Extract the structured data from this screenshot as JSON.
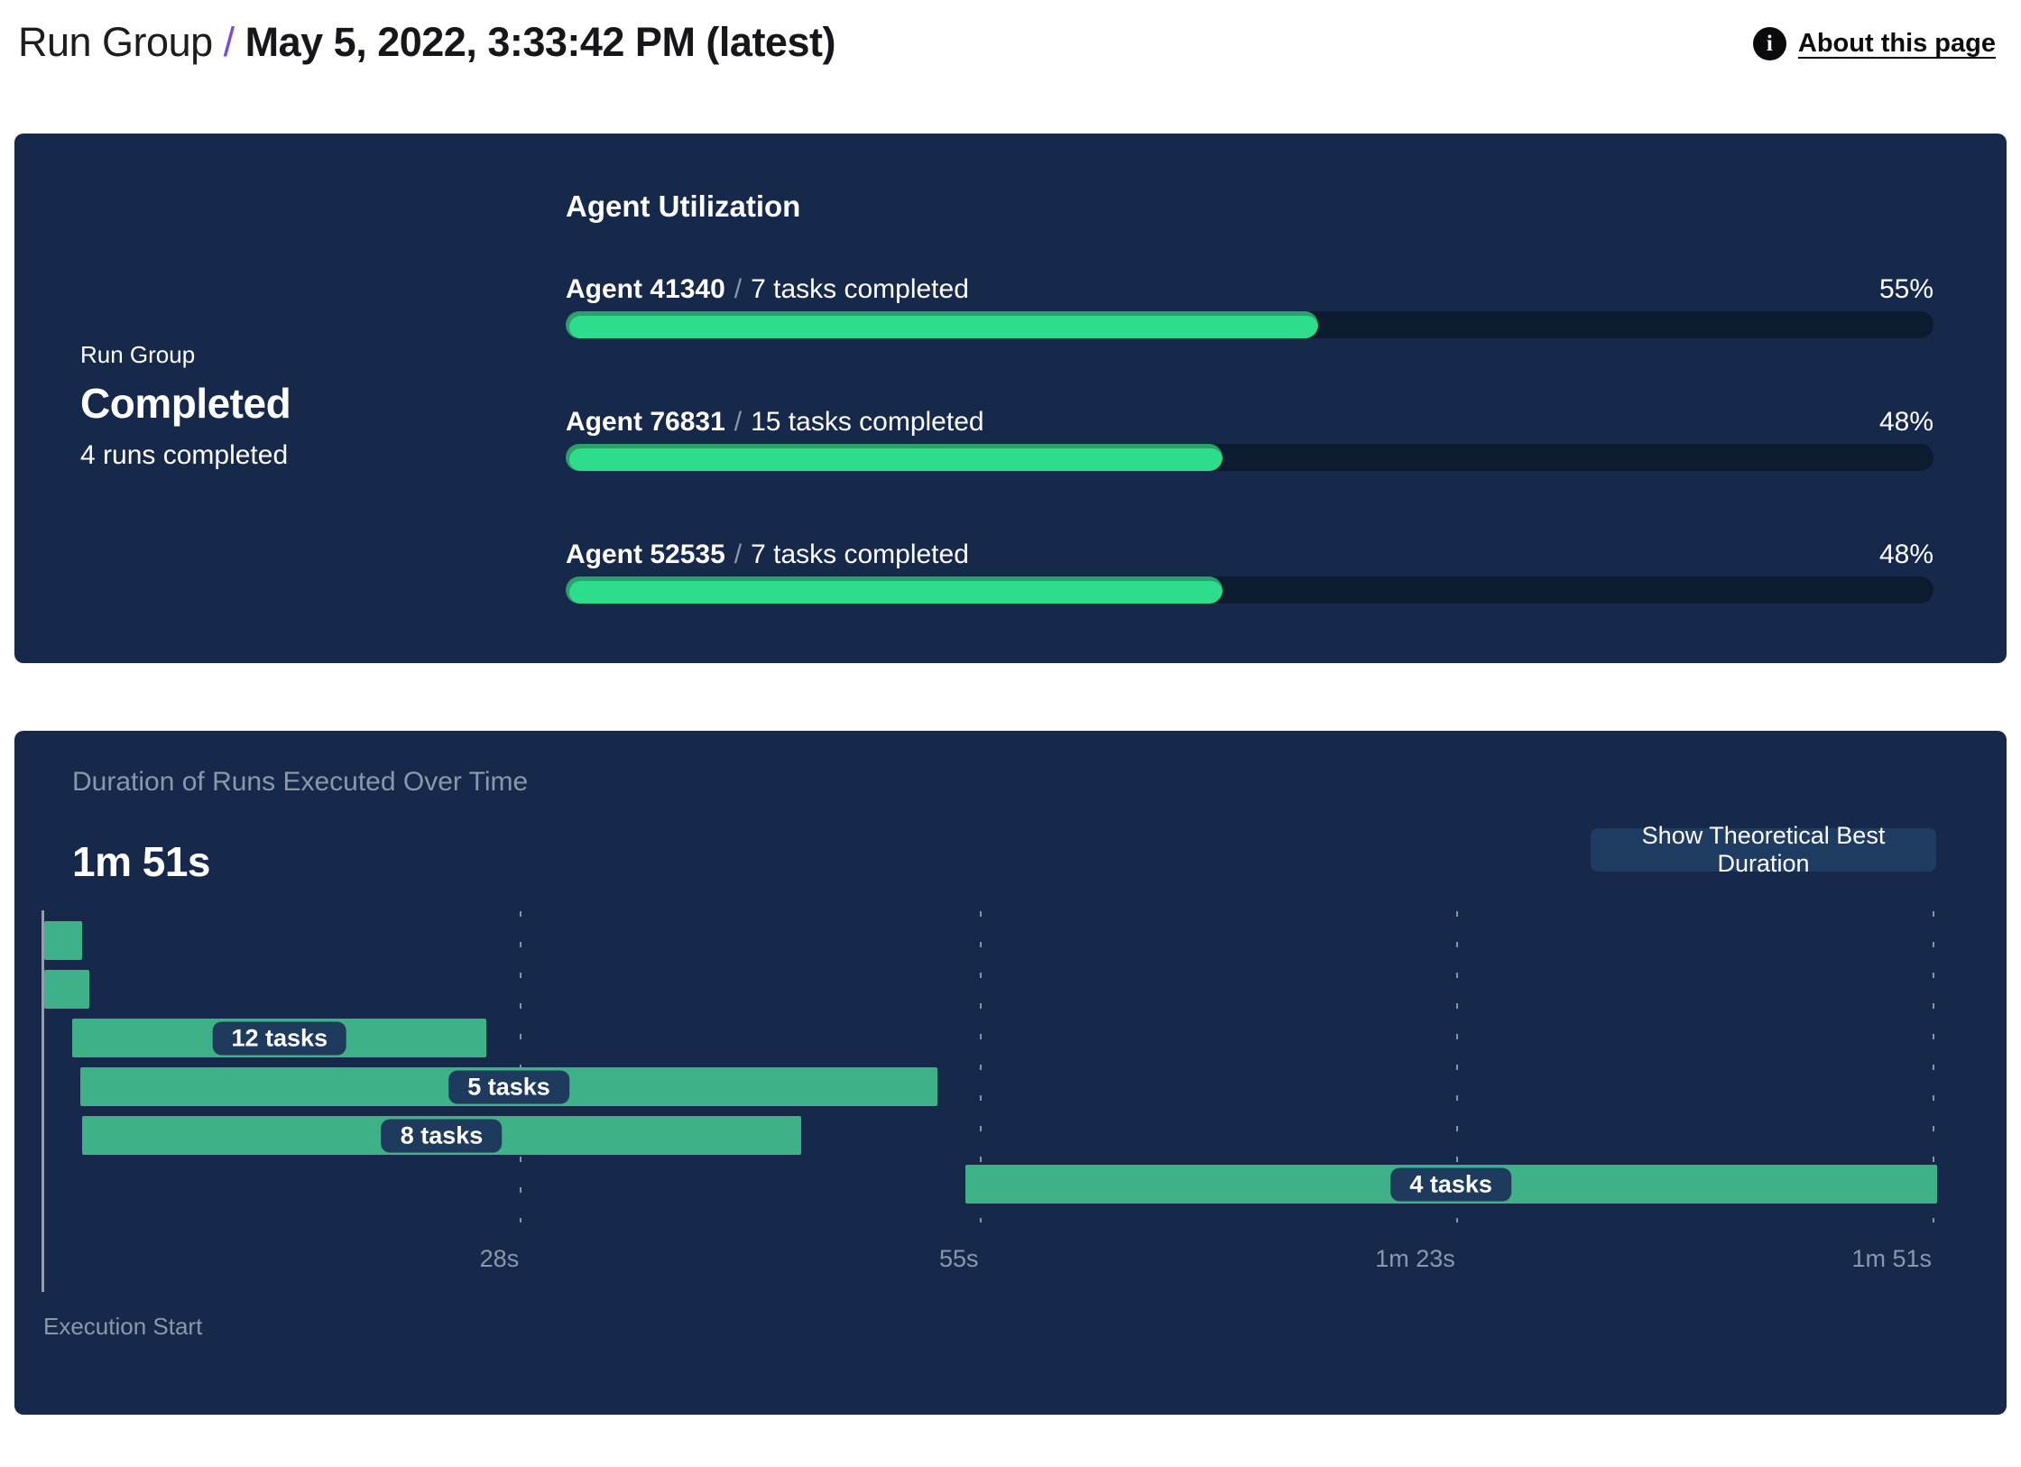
{
  "header": {
    "breadcrumb_root": "Run Group",
    "separator": "/",
    "title": "May 5, 2022, 3:33:42 PM (latest)",
    "about_link": "About this page",
    "info_icon_glyph": "i",
    "accent_color": "#7A4BE8"
  },
  "summary": {
    "group_label": "Run Group",
    "status": "Completed",
    "runs_completed": "4 runs completed"
  },
  "agent_utilization": {
    "section_title": "Agent Utilization",
    "agents": [
      {
        "name": "Agent 41340",
        "separator": "/",
        "tasks": "7 tasks completed",
        "percent_label": "55%",
        "percent_value": 55
      },
      {
        "name": "Agent 76831",
        "separator": "/",
        "tasks": "15 tasks completed",
        "percent_label": "48%",
        "percent_value": 48
      },
      {
        "name": "Agent 52535",
        "separator": "/",
        "tasks": "7 tasks completed",
        "percent_label": "48%",
        "percent_value": 48
      }
    ]
  },
  "duration_panel": {
    "title": "Duration of Runs Executed Over Time",
    "total_duration": "1m 51s",
    "button_label": "Show Theoretical Best Duration",
    "axis_label": "Execution Start"
  },
  "chart_data": [
    {
      "type": "bar",
      "title": "Agent Utilization",
      "categories": [
        "Agent 41340",
        "Agent 76831",
        "Agent 52535"
      ],
      "values": [
        55,
        48,
        48
      ],
      "unit": "%",
      "annotations": [
        "7 tasks completed",
        "15 tasks completed",
        "7 tasks completed"
      ],
      "xlim": [
        0,
        100
      ],
      "bar_color": "#2EDD8C",
      "track_color": "#0D1B30"
    },
    {
      "type": "gantt",
      "title": "Duration of Runs Executed Over Time",
      "total_duration_label": "1m 51s",
      "x_unit": "seconds",
      "x_range_seconds": [
        0,
        111
      ],
      "xlabel": "Execution Start",
      "grid": "dashed-vertical",
      "ticks": [
        {
          "label": "28s",
          "seconds": 28
        },
        {
          "label": "55s",
          "seconds": 55
        },
        {
          "label": "1m 23s",
          "seconds": 83
        },
        {
          "label": "1m 51s",
          "seconds": 111
        }
      ],
      "runs": [
        {
          "row": 1,
          "start_seconds": 0,
          "end_seconds": 2.2,
          "label": ""
        },
        {
          "row": 2,
          "start_seconds": 0,
          "end_seconds": 2.65,
          "label": ""
        },
        {
          "row": 3,
          "start_seconds": 1.65,
          "end_seconds": 26,
          "label": "12 tasks"
        },
        {
          "row": 4,
          "start_seconds": 2.1,
          "end_seconds": 52.5,
          "label": "5 tasks"
        },
        {
          "row": 5,
          "start_seconds": 2.2,
          "end_seconds": 44.5,
          "label": "8 tasks"
        },
        {
          "row": 6,
          "start_seconds": 54.1,
          "end_seconds": 111.2,
          "label": "4 tasks"
        }
      ],
      "bar_color": "#3EB189"
    }
  ],
  "colors": {
    "page_bg": "#FFFFFF",
    "panel_bg": "#16294A",
    "muted_text": "#8B98AB",
    "pill_bg": "#1E3A5C",
    "button_bg": "#1E3C61",
    "progress_fill": "#2EDD8C",
    "progress_fill_shade": "#2AA169",
    "progress_track": "#0D1B30",
    "gantt_bar": "#3EB189",
    "accent_purple": "#7A4BE8"
  }
}
